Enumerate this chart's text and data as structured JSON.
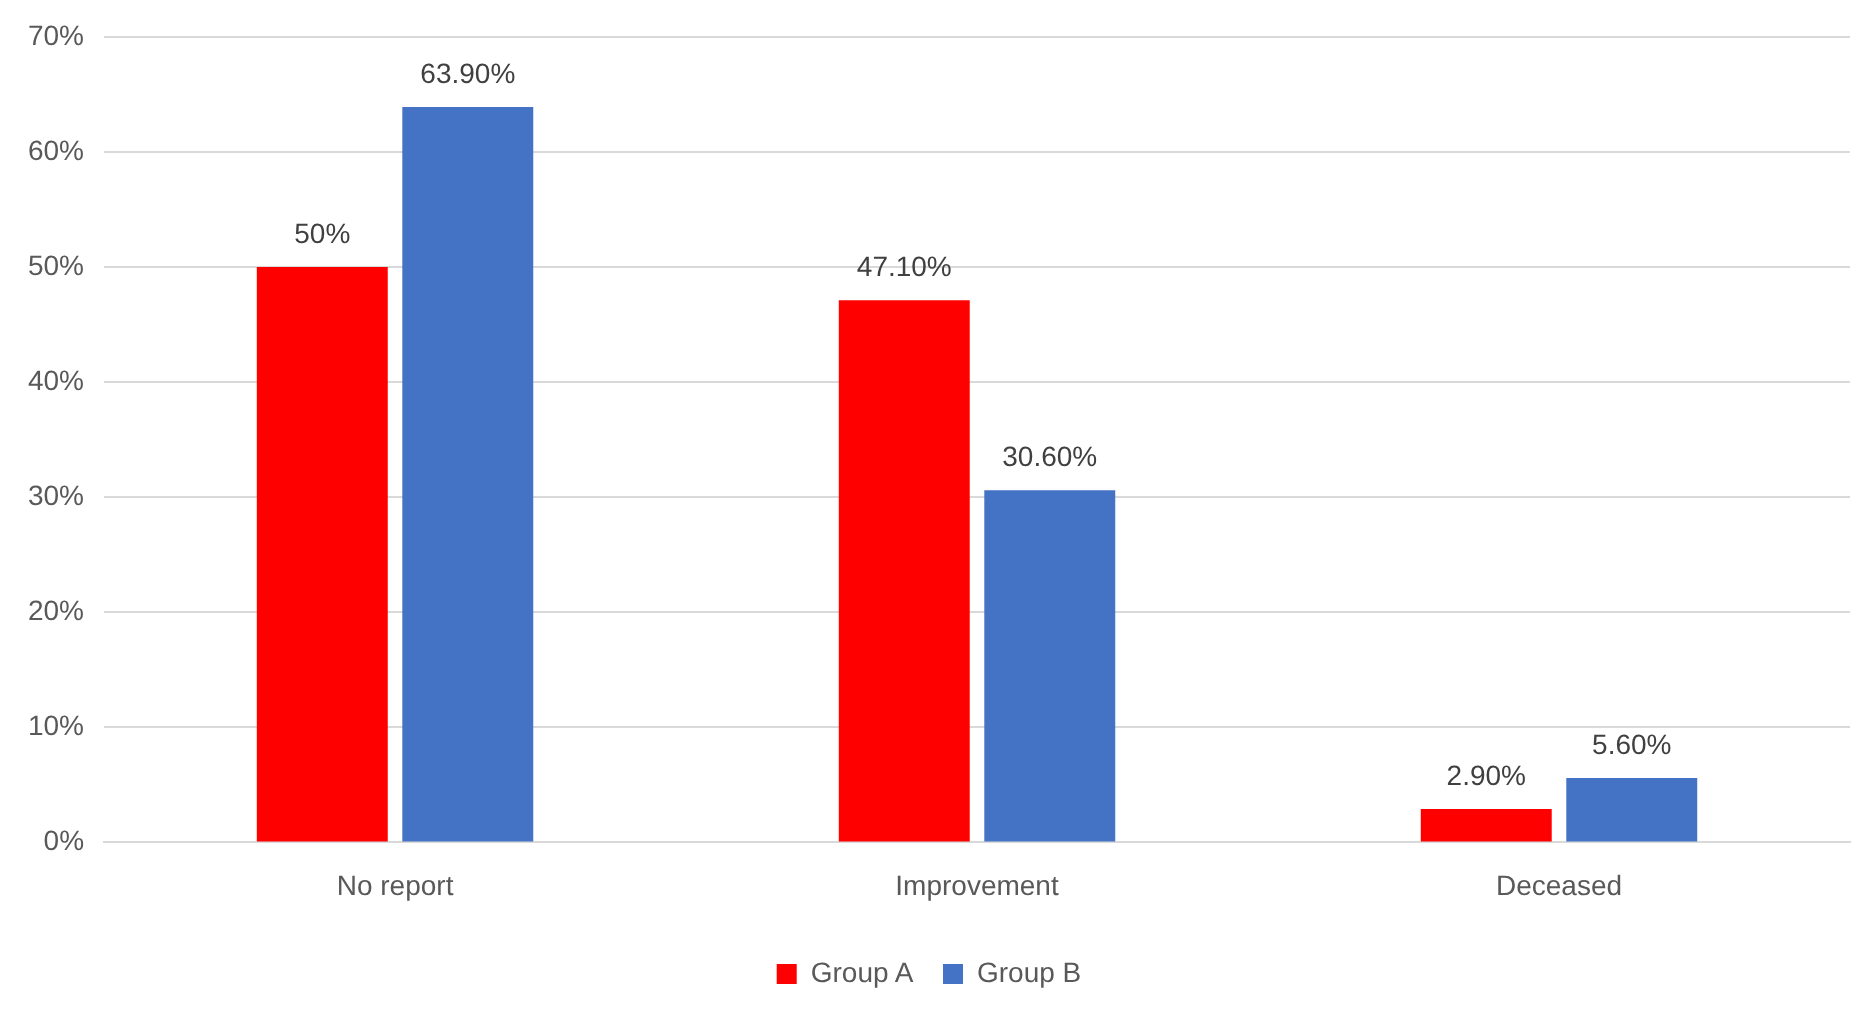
{
  "chart_data": {
    "type": "bar",
    "categories": [
      "No report",
      "Improvement",
      "Deceased"
    ],
    "series": [
      {
        "name": "Group A",
        "color": "#ff0000",
        "values": [
          50,
          47.1,
          2.9
        ],
        "value_labels": [
          "50%",
          "47.10%",
          "2.90%"
        ]
      },
      {
        "name": "Group B",
        "color": "#4472c4",
        "values": [
          63.9,
          30.6,
          5.6
        ],
        "value_labels": [
          "63.90%",
          "30.60%",
          "5.60%"
        ]
      }
    ],
    "ylim": [
      0,
      70
    ],
    "yticks": [
      {
        "value": 0,
        "label": "0%"
      },
      {
        "value": 10,
        "label": "10%"
      },
      {
        "value": 20,
        "label": "20%"
      },
      {
        "value": 30,
        "label": "30%"
      },
      {
        "value": 40,
        "label": "40%"
      },
      {
        "value": 50,
        "label": "50%"
      },
      {
        "value": 60,
        "label": "60%"
      },
      {
        "value": 70,
        "label": "70%"
      }
    ],
    "grid": "y",
    "legend": "bottom"
  }
}
